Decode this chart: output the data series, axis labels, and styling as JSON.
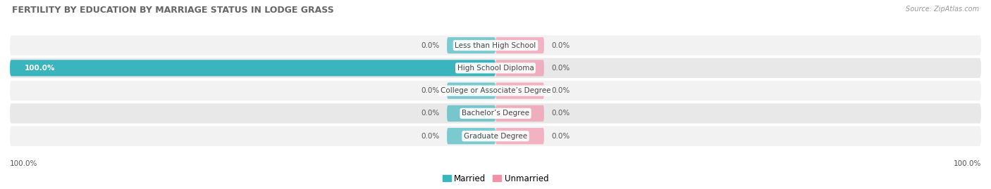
{
  "title": "FERTILITY BY EDUCATION BY MARRIAGE STATUS IN LODGE GRASS",
  "source": "Source: ZipAtlas.com",
  "categories": [
    "Less than High School",
    "High School Diploma",
    "College or Associate’s Degree",
    "Bachelor’s Degree",
    "Graduate Degree"
  ],
  "married_values": [
    0.0,
    100.0,
    0.0,
    0.0,
    0.0
  ],
  "unmarried_values": [
    0.0,
    0.0,
    0.0,
    0.0,
    0.0
  ],
  "married_color": "#3ab5be",
  "unmarried_color": "#f490a8",
  "row_bg_light": "#f2f2f2",
  "row_bg_dark": "#e8e8e8",
  "max_value": 100.0,
  "stub_size": 10.0,
  "legend_married": "Married",
  "legend_unmarried": "Unmarried",
  "bottom_left_label": "100.0%",
  "bottom_right_label": "100.0%"
}
